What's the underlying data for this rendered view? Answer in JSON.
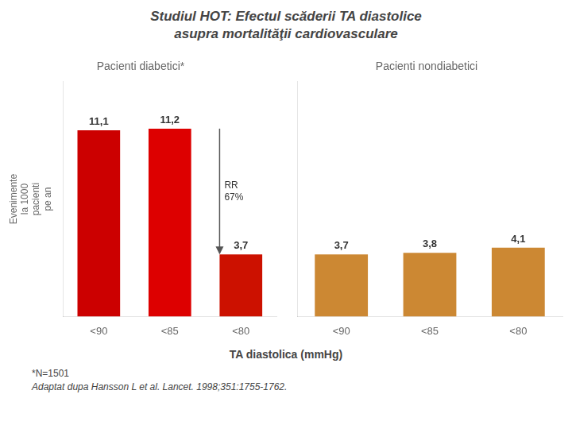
{
  "title": [
    "Studiul HOT: Efectul scăderii TA diastolice",
    "asupra mortalităţii cardiovasculare"
  ],
  "xlabel": "TA diastolica (mmHg)",
  "annotations": [
    "*N=1501",
    "Adaptat dupa Hansson L et al. Lancet. 1998;351:1755-1762."
  ],
  "chart_data": [
    {
      "type": "bar",
      "title": "Pacienti diabetici*",
      "categories": [
        "<90",
        "<85",
        "<80"
      ],
      "values": [
        11.1,
        11.2,
        3.7
      ],
      "value_labels": [
        "11,1",
        "11,2",
        "3,7"
      ],
      "colors": [
        "#cc0000",
        "#dd0000",
        "#cc1100"
      ],
      "ylabel": "Evenimente\nla 1000\npacienti\npe an",
      "annotation": "RR\n67%",
      "ylim": [
        0,
        14
      ],
      "data_labels": true,
      "grid": false,
      "tick_labels": "x"
    },
    {
      "type": "bar",
      "title": "Pacienti nondiabetici",
      "categories": [
        "<90",
        "<85",
        "<80"
      ],
      "values": [
        3.7,
        3.8,
        4.1
      ],
      "value_labels": [
        "3,7",
        "3,8",
        "4,1"
      ],
      "colors": [
        "#cc8833",
        "#cc8833",
        "#cc8833"
      ],
      "ylim": [
        0,
        14
      ],
      "data_labels": true,
      "grid": false,
      "tick_labels": "x"
    }
  ]
}
